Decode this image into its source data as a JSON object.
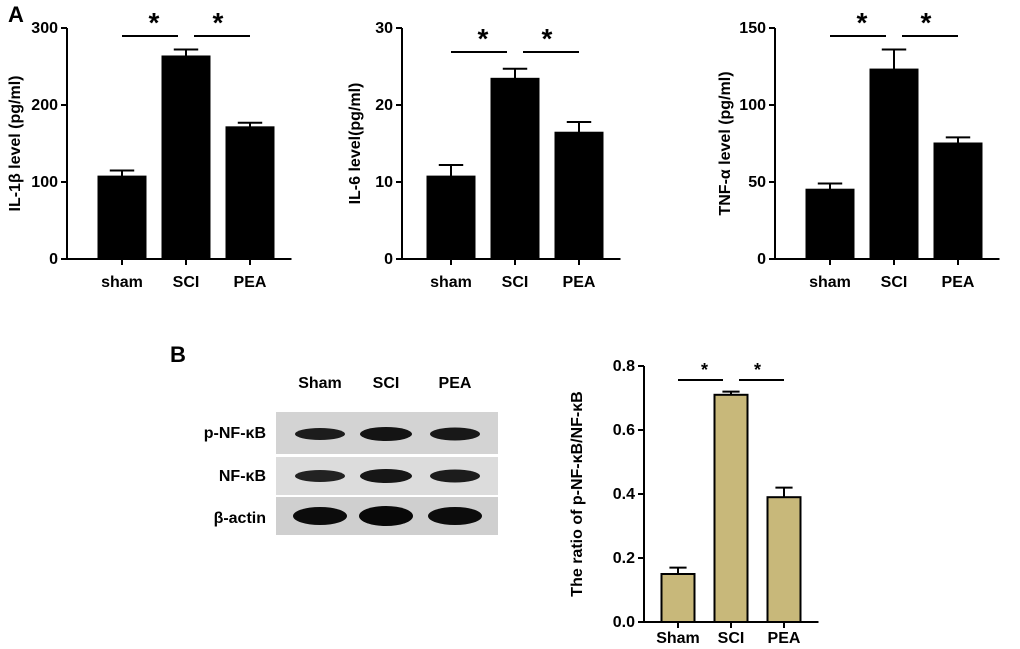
{
  "panel_labels": {
    "a": "A",
    "b": "B"
  },
  "blot": {
    "lanes": [
      "Sham",
      "SCI",
      "PEA"
    ],
    "rows": [
      "p-NF-κB",
      "NF-κB",
      "β-actin"
    ]
  },
  "significance_mark": "*",
  "chart_data": [
    {
      "type": "bar",
      "panel": "A",
      "categories": [
        "sham",
        "SCI",
        "PEA"
      ],
      "values": [
        107,
        263,
        171
      ],
      "errors": [
        8,
        9,
        6
      ],
      "ylabel": "IL-1β level (pg/ml)",
      "ylim": [
        0,
        300
      ],
      "yticks": [
        0,
        100,
        200,
        300
      ],
      "bar_color": "#000000",
      "significance": [
        [
          0,
          1
        ],
        [
          1,
          2
        ]
      ]
    },
    {
      "type": "bar",
      "panel": "A",
      "categories": [
        "sham",
        "SCI",
        "PEA"
      ],
      "values": [
        10.7,
        23.4,
        16.4
      ],
      "errors": [
        1.5,
        1.3,
        1.4
      ],
      "ylabel": "IL-6 level(pg/ml)",
      "ylim": [
        0,
        30
      ],
      "yticks": [
        0,
        10,
        20,
        30
      ],
      "bar_color": "#000000",
      "significance": [
        [
          0,
          1
        ],
        [
          1,
          2
        ]
      ]
    },
    {
      "type": "bar",
      "panel": "A",
      "categories": [
        "sham",
        "SCI",
        "PEA"
      ],
      "values": [
        45,
        123,
        75
      ],
      "errors": [
        4,
        13,
        4
      ],
      "ylabel": "TNF-α level (pg/ml)",
      "ylim": [
        0,
        150
      ],
      "yticks": [
        0,
        50,
        100,
        150
      ],
      "bar_color": "#000000",
      "significance": [
        [
          0,
          1
        ],
        [
          1,
          2
        ]
      ]
    },
    {
      "type": "bar",
      "panel": "B",
      "categories": [
        "Sham",
        "SCI",
        "PEA"
      ],
      "values": [
        0.15,
        0.71,
        0.39
      ],
      "errors": [
        0.02,
        0.01,
        0.03
      ],
      "ylabel": "The ratio of p-NF-κB/NF-κB",
      "ylim": [
        0,
        0.8
      ],
      "yticks": [
        "0.0",
        "0.2",
        "0.4",
        "0.6",
        "0.8"
      ],
      "bar_color": "#c8b87a",
      "significance": [
        [
          0,
          1
        ],
        [
          1,
          2
        ]
      ]
    }
  ]
}
